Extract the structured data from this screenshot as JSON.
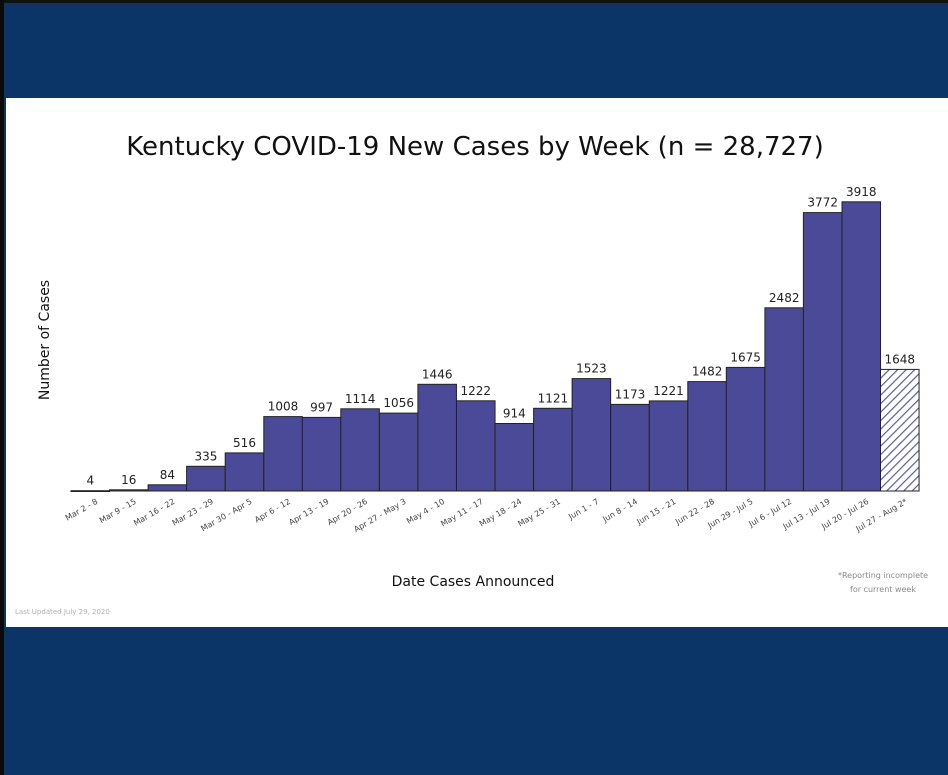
{
  "slide": {
    "last_updated": "Last Updated July 29, 2020",
    "footnote_line1": "*Reporting incomplete",
    "footnote_line2": "for current week"
  },
  "colors": {
    "bar": "#4a4a98",
    "bar_stroke": "#222222",
    "hatch": "#5a5a9a",
    "background_frame": "#0b3566"
  },
  "chart_data": {
    "type": "bar",
    "title": "Kentucky COVID-19 New Cases by Week (n = 28,727)",
    "xlabel": "Date Cases Announced",
    "ylabel": "Number of Cases",
    "grid": false,
    "legend": "none",
    "ylim": [
      0,
      4200
    ],
    "categories": [
      "Mar 2 - 8",
      "Mar 9 - 15",
      "Mar 16 - 22",
      "Mar 23 - 29",
      "Mar 30 - Apr 5",
      "Apr 6 - 12",
      "Apr 13 - 19",
      "Apr 20 - 26",
      "Apr 27 - May 3",
      "May 4 - 10",
      "May 11 - 17",
      "May 18 - 24",
      "May 25 - 31",
      "Jun 1 - 7",
      "Jun 8 - 14",
      "Jun 15 - 21",
      "Jun 22 - 28",
      "Jun 29 - Jul 5",
      "Jul 6 - Jul 12",
      "Jul 13 - Jul 19",
      "Jul 20 - Jul 26",
      "Jul 27 - Aug 2*"
    ],
    "values": [
      4,
      16,
      84,
      335,
      516,
      1008,
      997,
      1114,
      1056,
      1446,
      1222,
      914,
      1121,
      1523,
      1173,
      1221,
      1482,
      1675,
      2482,
      3772,
      3918,
      1648
    ],
    "incomplete_last": true
  }
}
